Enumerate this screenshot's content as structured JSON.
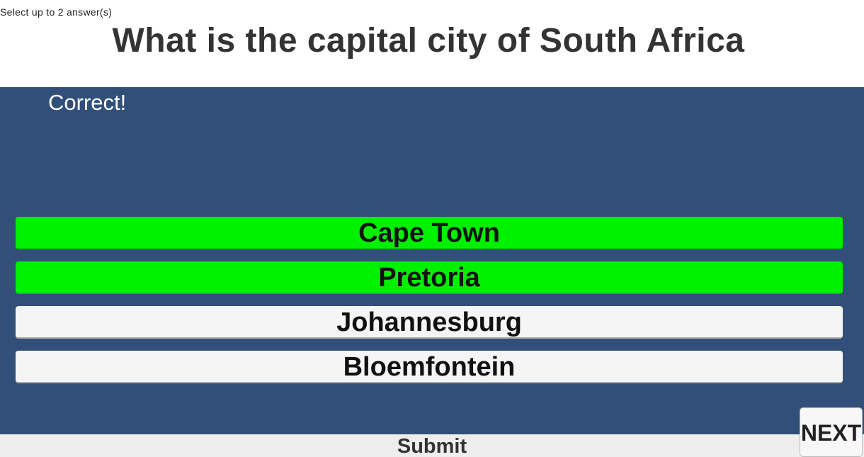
{
  "quiz": {
    "instruction": "Select up to 2 answer(s)",
    "question": "What is the capital city of South Africa",
    "feedback": "Correct!",
    "answers": [
      {
        "label": "Cape Town",
        "state": "selected-correct",
        "color": "#00f000"
      },
      {
        "label": "Pretoria",
        "state": "selected-correct",
        "color": "#00f000"
      },
      {
        "label": "Johannesburg",
        "state": "unselected",
        "color": "#f5f5f5"
      },
      {
        "label": "Bloemfontein",
        "state": "unselected",
        "color": "#f5f5f5"
      }
    ],
    "submit_label": "Submit",
    "next_label": "NEXT"
  },
  "colors": {
    "panel_bg": "#324f79",
    "correct": "#00f000",
    "answer_default": "#f5f5f5"
  }
}
